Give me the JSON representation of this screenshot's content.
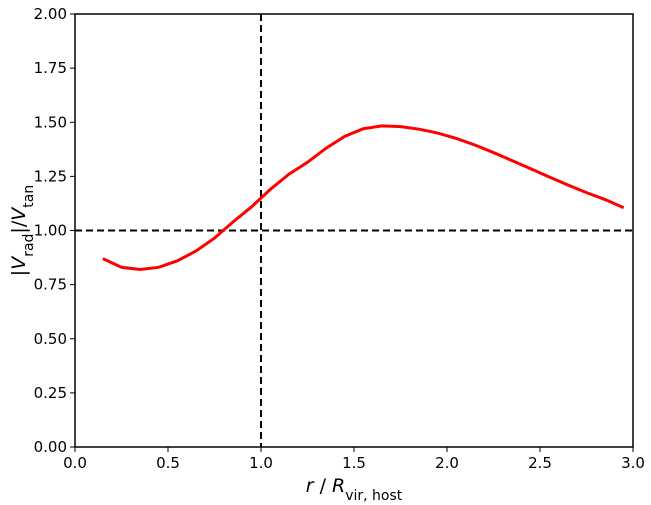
{
  "chart_data": {
    "type": "line",
    "xlabel": [
      {
        "text": "r",
        "style": "italic"
      },
      {
        "text": " / "
      },
      {
        "text": "R",
        "style": "italic"
      },
      {
        "text": "vir, host",
        "style": "sub"
      }
    ],
    "ylabel": [
      {
        "text": "|"
      },
      {
        "text": "V",
        "style": "italic"
      },
      {
        "text": "rad",
        "style": "sub"
      },
      {
        "text": "|/"
      },
      {
        "text": "V",
        "style": "italic"
      },
      {
        "text": "tan",
        "style": "sub"
      }
    ],
    "xlim": [
      0,
      3
    ],
    "ylim": [
      0,
      2
    ],
    "xticks": [
      {
        "value": 0,
        "label": "0.0"
      },
      {
        "value": 0.5,
        "label": "0.5"
      },
      {
        "value": 1,
        "label": "1.0"
      },
      {
        "value": 1.5,
        "label": "1.5"
      },
      {
        "value": 2,
        "label": "2.0"
      },
      {
        "value": 2.5,
        "label": "2.5"
      },
      {
        "value": 3,
        "label": "3.0"
      }
    ],
    "yticks": [
      {
        "value": 0,
        "label": "0.00"
      },
      {
        "value": 0.25,
        "label": "0.25"
      },
      {
        "value": 0.5,
        "label": "0.50"
      },
      {
        "value": 0.75,
        "label": "0.75"
      },
      {
        "value": 1,
        "label": "1.00"
      },
      {
        "value": 1.25,
        "label": "1.25"
      },
      {
        "value": 1.5,
        "label": "1.50"
      },
      {
        "value": 1.75,
        "label": "1.75"
      },
      {
        "value": 2,
        "label": "2.00"
      }
    ],
    "hlines": [
      1
    ],
    "vlines": [
      1
    ],
    "ref_color": "#000000",
    "series": [
      {
        "color": "#ff0000",
        "x": [
          0.15,
          0.25,
          0.35,
          0.45,
          0.55,
          0.65,
          0.75,
          0.85,
          0.95,
          1.05,
          1.15,
          1.25,
          1.35,
          1.45,
          1.55,
          1.65,
          1.75,
          1.85,
          1.95,
          2.05,
          2.15,
          2.25,
          2.35,
          2.45,
          2.55,
          2.65,
          2.75,
          2.85,
          2.95
        ],
        "values": [
          0.87,
          0.83,
          0.82,
          0.83,
          0.86,
          0.905,
          0.965,
          1.04,
          1.11,
          1.19,
          1.26,
          1.315,
          1.38,
          1.435,
          1.47,
          1.483,
          1.48,
          1.468,
          1.45,
          1.425,
          1.395,
          1.36,
          1.323,
          1.285,
          1.247,
          1.21,
          1.175,
          1.143,
          1.105
        ]
      }
    ]
  }
}
